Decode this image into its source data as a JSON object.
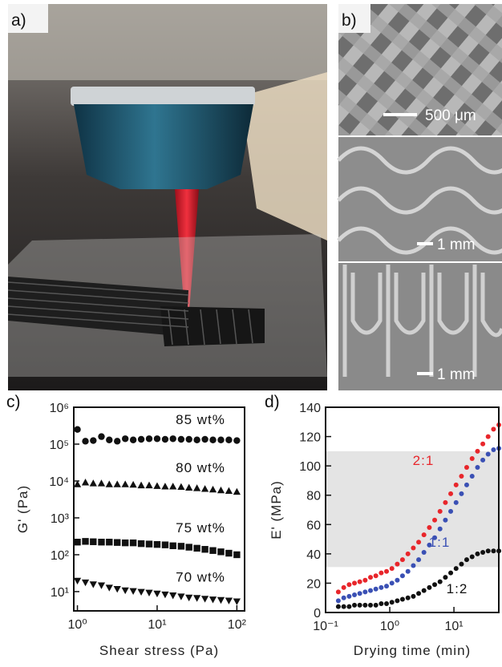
{
  "panels": {
    "a": {
      "label": "a)"
    },
    "b": {
      "label": "b)",
      "scale_bars": [
        "500 μm",
        "1 mm",
        "1 mm"
      ]
    }
  },
  "chart_data": [
    {
      "type": "scatter",
      "panel_label": "c)",
      "x_label": "Shear stress (Pa)",
      "y_label": "G' (Pa)",
      "xscale": "log",
      "yscale": "log",
      "xlim": [
        0.9,
        125
      ],
      "ylim": [
        3,
        1000000
      ],
      "xticks": [
        {
          "value": 1,
          "label": "10⁰"
        },
        {
          "value": 10,
          "label": "10¹"
        },
        {
          "value": 100,
          "label": "10²"
        }
      ],
      "yticks": [
        {
          "value": 10,
          "label": "10¹"
        },
        {
          "value": 100,
          "label": "10²"
        },
        {
          "value": 1000,
          "label": "10³"
        },
        {
          "value": 10000,
          "label": "10⁴"
        },
        {
          "value": 100000,
          "label": "10⁵"
        },
        {
          "value": 1000000,
          "label": "10⁶"
        }
      ],
      "x": [
        1,
        1.26,
        1.58,
        2,
        2.51,
        3.16,
        3.98,
        5.01,
        6.31,
        7.94,
        10,
        12.6,
        15.8,
        20,
        25.1,
        31.6,
        39.8,
        50.1,
        63.1,
        79.4,
        100
      ],
      "series": [
        {
          "name": "85 wt%",
          "color": "#111111",
          "marker": "circle",
          "values": [
            250000,
            120000,
            125000,
            160000,
            130000,
            120000,
            140000,
            130000,
            135000,
            140000,
            140000,
            135000,
            140000,
            135000,
            135000,
            130000,
            135000,
            130000,
            130000,
            130000,
            125000
          ]
        },
        {
          "name": "80 wt%",
          "color": "#111111",
          "marker": "triangle-up",
          "values": [
            8000,
            9000,
            8500,
            8500,
            8000,
            8000,
            8000,
            7800,
            7500,
            7500,
            7200,
            7000,
            7000,
            6800,
            6500,
            6300,
            6000,
            5800,
            5500,
            5300,
            5000
          ]
        },
        {
          "name": "75 wt%",
          "color": "#111111",
          "marker": "square",
          "values": [
            220,
            230,
            225,
            220,
            220,
            215,
            210,
            210,
            200,
            195,
            190,
            185,
            175,
            170,
            160,
            150,
            140,
            130,
            120,
            110,
            100
          ]
        },
        {
          "name": "70 wt%",
          "color": "#111111",
          "marker": "triangle-down",
          "values": [
            20,
            18,
            16,
            15,
            13,
            12,
            11,
            10.5,
            10,
            9.5,
            9,
            8.5,
            8,
            7.5,
            7,
            6.8,
            6.5,
            6.2,
            6,
            5.8,
            5.5
          ]
        }
      ]
    },
    {
      "type": "scatter",
      "panel_label": "d)",
      "x_label": "Drying time (min)",
      "y_label": "E' (MPa)",
      "xscale": "log",
      "yscale": "linear",
      "xlim": [
        0.1,
        50
      ],
      "ylim": [
        0,
        140
      ],
      "xticks": [
        {
          "value": 0.1,
          "label": "10⁻¹"
        },
        {
          "value": 1,
          "label": "10⁰"
        },
        {
          "value": 10,
          "label": "10¹"
        }
      ],
      "yticks": [
        0,
        20,
        40,
        60,
        80,
        100,
        120,
        140
      ],
      "shaded_range": [
        31,
        110
      ],
      "x": [
        0.158,
        0.192,
        0.233,
        0.282,
        0.341,
        0.414,
        0.501,
        0.607,
        0.736,
        0.891,
        1.08,
        1.31,
        1.58,
        1.92,
        2.33,
        2.82,
        3.41,
        4.14,
        5.01,
        6.07,
        7.36,
        8.91,
        10.8,
        13.1,
        15.8,
        19.2,
        23.3,
        28.2,
        34.1,
        41.4,
        50.1
      ],
      "series": [
        {
          "name": "2:1",
          "color": "#e8262b",
          "marker": "circle",
          "values": [
            14,
            17,
            19,
            20,
            21,
            22,
            24,
            25,
            27,
            28,
            30,
            33,
            36,
            40,
            44,
            48,
            53,
            58,
            63,
            69,
            75,
            81,
            87,
            93,
            99,
            105,
            110,
            115,
            120,
            125,
            128
          ]
        },
        {
          "name": "1:1",
          "color": "#3a50b4",
          "marker": "circle",
          "values": [
            8,
            10,
            11,
            12,
            13,
            14,
            15,
            16,
            17,
            18,
            20,
            22,
            25,
            28,
            32,
            36,
            41,
            46,
            51,
            57,
            63,
            69,
            75,
            81,
            87,
            93,
            99,
            104,
            108,
            111,
            112
          ]
        },
        {
          "name": "1:2",
          "color": "#111111",
          "marker": "circle",
          "values": [
            4,
            4,
            4,
            5,
            5,
            5,
            5,
            5,
            6,
            6,
            7,
            8,
            9,
            10,
            11,
            13,
            15,
            17,
            19,
            21,
            24,
            27,
            30,
            33,
            36,
            38,
            40,
            41,
            42,
            42,
            42
          ]
        }
      ]
    }
  ]
}
